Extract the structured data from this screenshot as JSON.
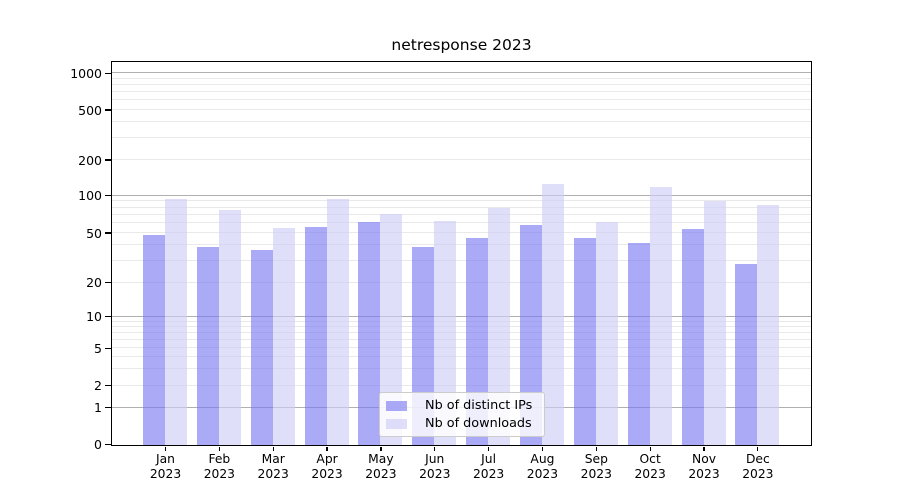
{
  "chart_data": {
    "type": "bar",
    "title": "netresponse 2023",
    "year": "2023",
    "x_months": [
      "Jan",
      "Feb",
      "Mar",
      "Apr",
      "May",
      "Jun",
      "Jul",
      "Aug",
      "Sep",
      "Oct",
      "Nov",
      "Dec"
    ],
    "categories": [
      "Jan 2023",
      "Feb 2023",
      "Mar 2023",
      "Apr 2023",
      "May 2023",
      "Jun 2023",
      "Jul 2023",
      "Aug 2023",
      "Sep 2023",
      "Oct 2023",
      "Nov 2023",
      "Dec 2023"
    ],
    "series": [
      {
        "name": "Nb of distinct IPs",
        "color": "rgba(118,118,240,0.62)",
        "values": [
          48,
          38,
          36,
          55,
          61,
          38,
          45,
          58,
          45,
          41,
          53,
          28
        ]
      },
      {
        "name": "Nb of downloads",
        "color": "rgba(206,206,246,0.65)",
        "values": [
          94,
          76,
          54,
          94,
          71,
          62,
          79,
          124,
          61,
          118,
          90,
          83
        ]
      }
    ],
    "yscale": "symlog",
    "ylim": [
      0,
      1240
    ],
    "ytick_labels": [
      "0",
      "1",
      "2",
      "5",
      "10",
      "20",
      "50",
      "100",
      "200",
      "500",
      "1000"
    ],
    "ytick_values": [
      0,
      1,
      2,
      5,
      10,
      20,
      50,
      100,
      200,
      500,
      1000
    ],
    "grid": true,
    "legend_position": "lower center",
    "xlabel": "",
    "ylabel": ""
  },
  "colors": {
    "bar_distinct_ips_rendered": "#aaaaf6",
    "bar_downloads_rendered": "#dfdff9",
    "major_grid": "#b0b0b0",
    "minor_grid": "#e9e9e9",
    "spine": "#000000",
    "background": "#ffffff"
  }
}
